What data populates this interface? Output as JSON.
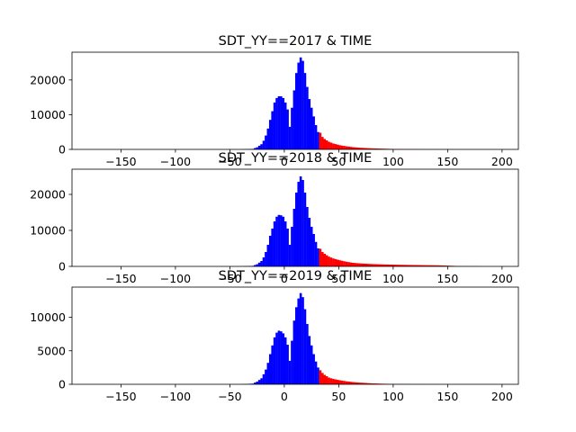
{
  "chart_data": [
    {
      "type": "bar",
      "title": "SDT_YY==2017 & TIME",
      "xlim": [
        -195,
        215
      ],
      "ylim": [
        0,
        28000
      ],
      "xticks": [
        -150,
        -100,
        -50,
        0,
        50,
        100,
        150,
        200
      ],
      "yticks": [
        0,
        10000,
        20000
      ],
      "bin_width": 2,
      "threshold": 32,
      "colors": {
        "below": "#0000ff",
        "above": "#ff0000"
      },
      "points": [
        [
          -40,
          30
        ],
        [
          -30,
          150
        ],
        [
          -26,
          600
        ],
        [
          -22,
          1500
        ],
        [
          -20,
          2500
        ],
        [
          -18,
          4000
        ],
        [
          -16,
          6000
        ],
        [
          -14,
          8500
        ],
        [
          -12,
          11000
        ],
        [
          -10,
          13500
        ],
        [
          -8,
          14800
        ],
        [
          -6,
          15300
        ],
        [
          -4,
          15300
        ],
        [
          -2,
          14800
        ],
        [
          0,
          13500
        ],
        [
          2,
          11500
        ],
        [
          4,
          6500
        ],
        [
          6,
          12000
        ],
        [
          8,
          17000
        ],
        [
          10,
          22000
        ],
        [
          12,
          25000
        ],
        [
          14,
          26500
        ],
        [
          16,
          25500
        ],
        [
          18,
          22000
        ],
        [
          20,
          18000
        ],
        [
          22,
          14500
        ],
        [
          24,
          12000
        ],
        [
          26,
          9500
        ],
        [
          28,
          7000
        ],
        [
          30,
          5000
        ],
        [
          32,
          4800
        ],
        [
          34,
          3600
        ],
        [
          36,
          3000
        ],
        [
          38,
          2600
        ],
        [
          40,
          2200
        ],
        [
          44,
          1700
        ],
        [
          50,
          1200
        ],
        [
          56,
          900
        ],
        [
          62,
          650
        ],
        [
          70,
          450
        ],
        [
          80,
          300
        ],
        [
          90,
          200
        ],
        [
          100,
          120
        ],
        [
          120,
          60
        ],
        [
          150,
          20
        ],
        [
          180,
          5
        ]
      ]
    },
    {
      "type": "bar",
      "title": "SDT_YY==2018 & TIME",
      "xlim": [
        -195,
        215
      ],
      "ylim": [
        0,
        27000
      ],
      "xticks": [
        -150,
        -100,
        -50,
        0,
        50,
        100,
        150,
        200
      ],
      "yticks": [
        0,
        10000,
        20000
      ],
      "bin_width": 2,
      "threshold": 32,
      "colors": {
        "below": "#0000ff",
        "above": "#ff0000"
      },
      "points": [
        [
          -40,
          30
        ],
        [
          -30,
          150
        ],
        [
          -26,
          600
        ],
        [
          -22,
          1500
        ],
        [
          -20,
          2500
        ],
        [
          -18,
          4000
        ],
        [
          -16,
          6000
        ],
        [
          -14,
          8500
        ],
        [
          -12,
          10500
        ],
        [
          -10,
          12500
        ],
        [
          -8,
          13800
        ],
        [
          -6,
          14300
        ],
        [
          -4,
          14200
        ],
        [
          -2,
          13800
        ],
        [
          0,
          12500
        ],
        [
          2,
          10500
        ],
        [
          4,
          6000
        ],
        [
          6,
          11000
        ],
        [
          8,
          16000
        ],
        [
          10,
          20500
        ],
        [
          12,
          23500
        ],
        [
          14,
          25000
        ],
        [
          16,
          24000
        ],
        [
          18,
          20500
        ],
        [
          20,
          16500
        ],
        [
          22,
          13500
        ],
        [
          24,
          11000
        ],
        [
          26,
          9000
        ],
        [
          28,
          6800
        ],
        [
          30,
          5000
        ],
        [
          32,
          4900
        ],
        [
          34,
          4000
        ],
        [
          36,
          3500
        ],
        [
          38,
          3100
        ],
        [
          40,
          2700
        ],
        [
          44,
          2200
        ],
        [
          50,
          1700
        ],
        [
          56,
          1300
        ],
        [
          62,
          1000
        ],
        [
          70,
          800
        ],
        [
          80,
          650
        ],
        [
          90,
          550
        ],
        [
          100,
          480
        ],
        [
          110,
          420
        ],
        [
          120,
          380
        ],
        [
          130,
          340
        ],
        [
          140,
          300
        ],
        [
          150,
          200
        ],
        [
          160,
          80
        ],
        [
          180,
          20
        ]
      ]
    },
    {
      "type": "bar",
      "title": "SDT_YY==2019 & TIME",
      "xlim": [
        -195,
        215
      ],
      "ylim": [
        0,
        14500
      ],
      "xticks": [
        -150,
        -100,
        -50,
        0,
        50,
        100,
        150,
        200
      ],
      "yticks": [
        0,
        5000,
        10000
      ],
      "bin_width": 2,
      "threshold": 32,
      "colors": {
        "below": "#0000ff",
        "above": "#ff0000"
      },
      "points": [
        [
          -40,
          20
        ],
        [
          -30,
          100
        ],
        [
          -26,
          400
        ],
        [
          -22,
          900
        ],
        [
          -20,
          1500
        ],
        [
          -18,
          2200
        ],
        [
          -16,
          3200
        ],
        [
          -14,
          4500
        ],
        [
          -12,
          5800
        ],
        [
          -10,
          7000
        ],
        [
          -8,
          7700
        ],
        [
          -6,
          8000
        ],
        [
          -4,
          7900
        ],
        [
          -2,
          7600
        ],
        [
          0,
          7000
        ],
        [
          2,
          5900
        ],
        [
          4,
          3500
        ],
        [
          6,
          6500
        ],
        [
          8,
          9500
        ],
        [
          10,
          11500
        ],
        [
          12,
          12800
        ],
        [
          14,
          13600
        ],
        [
          16,
          13000
        ],
        [
          18,
          11200
        ],
        [
          20,
          9000
        ],
        [
          22,
          7200
        ],
        [
          24,
          5800
        ],
        [
          26,
          4500
        ],
        [
          28,
          3400
        ],
        [
          30,
          2500
        ],
        [
          32,
          2100
        ],
        [
          34,
          1700
        ],
        [
          36,
          1400
        ],
        [
          38,
          1200
        ],
        [
          40,
          1000
        ],
        [
          44,
          800
        ],
        [
          50,
          600
        ],
        [
          56,
          450
        ],
        [
          62,
          330
        ],
        [
          70,
          230
        ],
        [
          80,
          140
        ],
        [
          90,
          80
        ],
        [
          100,
          50
        ],
        [
          120,
          20
        ],
        [
          150,
          5
        ]
      ]
    }
  ]
}
